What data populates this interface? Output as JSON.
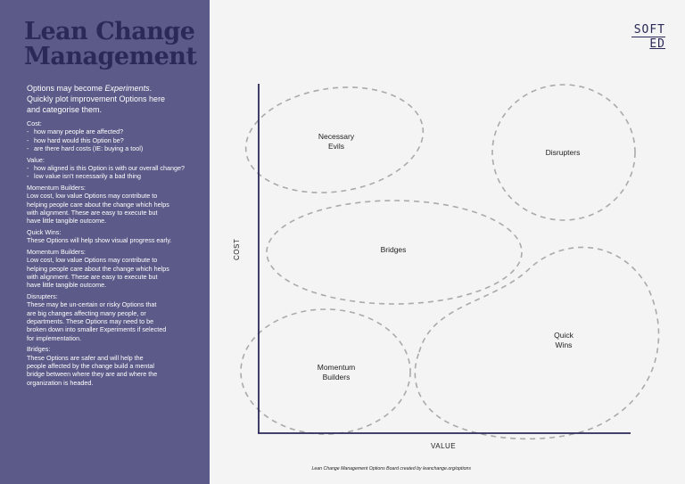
{
  "sidebar": {
    "title_line1": "Lean Change",
    "title_line2": "Management",
    "intro_line1_a": "Options may become ",
    "intro_line1_em": "Experiments",
    "intro_line1_b": ".",
    "intro_line2": "Quickly plot improvement Options here",
    "intro_line3": "and categorise them.",
    "sections": [
      {
        "heading": "Cost:",
        "items": [
          "how many people are affected?",
          "how hard would this Option be?",
          "are there hard costs (IE: buying a tool)"
        ],
        "lines": []
      },
      {
        "heading": "Value:",
        "items": [
          "how aligned is this Option is with our overall change?",
          "low value isn't necessarily a bad thing"
        ],
        "lines": []
      },
      {
        "heading": "Momentum Builders:",
        "items": [],
        "lines": [
          "Low cost, low value Options may contribute to",
          "helping people care about the change which helps",
          "with alignment. These are easy to execute but",
          "have little tangible outcome."
        ]
      },
      {
        "heading": "Quick Wins:",
        "items": [],
        "lines": [
          "These Options will help show visual progress early."
        ]
      },
      {
        "heading": "Momentum Builders:",
        "items": [],
        "lines": [
          "Low cost, low value Options may contribute to",
          "helping people care about the change which helps",
          "with alignment. These are easy to execute but",
          "have little tangible outcome."
        ]
      },
      {
        "heading": "Disrupters:",
        "items": [],
        "lines": [
          "These may be un-certain or risky Options that",
          "are big changes affecting many people, or",
          "departments. These Options may need to be",
          "broken down into smaller Experiments if selected",
          "for implementation."
        ]
      },
      {
        "heading": "Bridges:",
        "items": [],
        "lines": [
          "These Options are safer and will help the",
          "people affected by the change build a mental",
          "bridge between where they are and where the",
          "organization is headed."
        ]
      }
    ]
  },
  "logo": {
    "line1": "SOFT",
    "line2": "ED"
  },
  "board": {
    "y_axis_label": "COST",
    "x_axis_label": "VALUE",
    "regions": {
      "necessary_evils": [
        "Necessary",
        "Evils"
      ],
      "disrupters": [
        "Disrupters"
      ],
      "bridges": [
        "Bridges"
      ],
      "quick_wins": [
        "Quick",
        "Wins"
      ],
      "momentum_builders": [
        "Momentum",
        "Builders"
      ]
    }
  },
  "footer": "Lean Change Management Options Board created by leanchange.org/options",
  "colors": {
    "sidebar": "#5b5a88",
    "title": "#2a2957",
    "axis": "#2a2957",
    "dash": "#aaaaaa"
  }
}
